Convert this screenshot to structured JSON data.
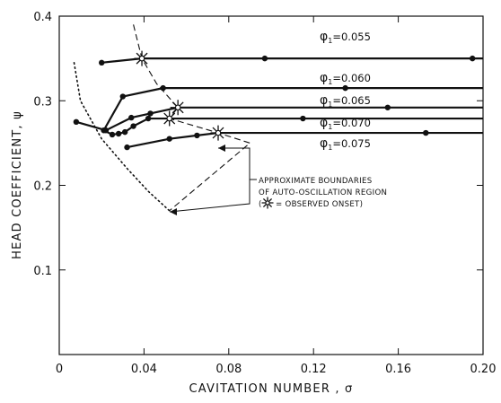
{
  "chart_data": {
    "type": "line",
    "xlabel": "CAVITATION NUMBER , σ",
    "ylabel": "HEAD COEFFICIENT, ψ",
    "xlim": [
      0,
      0.2
    ],
    "ylim": [
      0,
      0.4
    ],
    "x_ticks": [
      "0",
      "0.04",
      "0.08",
      "0.12",
      "0.16",
      "0.20"
    ],
    "y_ticks": [
      "0.1",
      "0.2",
      "0.3",
      "0.4"
    ],
    "grid": false,
    "series": [
      {
        "name": "φ1=0.055",
        "label": {
          "phi": "φ",
          "sub": "1",
          "value": "=0.055"
        },
        "x": [
          0.02,
          0.039,
          0.097,
          0.195,
          0.2
        ],
        "y": [
          0.345,
          0.35,
          0.35,
          0.35,
          0.35
        ],
        "markers": [
          0,
          2,
          3
        ]
      },
      {
        "name": "φ1=0.060",
        "label": {
          "phi": "φ",
          "sub": "1",
          "value": "=0.060"
        },
        "x": [
          0.021,
          0.03,
          0.049,
          0.135,
          0.2
        ],
        "y": [
          0.265,
          0.305,
          0.315,
          0.315,
          0.315
        ],
        "markers": [
          1,
          2,
          3
        ]
      },
      {
        "name": "φ1=0.065",
        "label": {
          "phi": "φ",
          "sub": "1",
          "value": "=0.065"
        },
        "x": [
          0.008,
          0.022,
          0.034,
          0.043,
          0.056,
          0.155,
          0.2
        ],
        "y": [
          0.275,
          0.265,
          0.28,
          0.285,
          0.292,
          0.292,
          0.292
        ],
        "markers": [
          0,
          1,
          2,
          3,
          5
        ]
      },
      {
        "name": "φ1=0.070",
        "label": {
          "phi": "φ",
          "sub": "1",
          "value": "=0.070"
        },
        "x": [
          0.021,
          0.025,
          0.028,
          0.031,
          0.035,
          0.042,
          0.052,
          0.115,
          0.2
        ],
        "y": [
          0.265,
          0.26,
          0.261,
          0.263,
          0.27,
          0.279,
          0.279,
          0.279,
          0.279
        ],
        "markers": [
          0,
          1,
          2,
          3,
          4,
          5,
          7
        ]
      },
      {
        "name": "φ1=0.075",
        "label": {
          "phi": "φ",
          "sub": "1",
          "value": "=0.075"
        },
        "x": [
          0.032,
          0.052,
          0.065,
          0.075,
          0.173,
          0.2
        ],
        "y": [
          0.245,
          0.255,
          0.259,
          0.262,
          0.262,
          0.262
        ],
        "markers": [
          0,
          1,
          2,
          4
        ]
      }
    ],
    "onset_points": [
      {
        "x": 0.039,
        "y": 0.35
      },
      {
        "x": 0.056,
        "y": 0.292
      },
      {
        "x": 0.052,
        "y": 0.279
      },
      {
        "x": 0.075,
        "y": 0.262
      }
    ],
    "boundaries": {
      "dashed": {
        "x": [
          0.035,
          0.039,
          0.046,
          0.056,
          0.052,
          0.075,
          0.09,
          0.052
        ],
        "y": [
          0.39,
          0.35,
          0.32,
          0.292,
          0.279,
          0.262,
          0.25,
          0.17
        ]
      },
      "dotted": {
        "x": [
          0.007,
          0.01,
          0.02,
          0.032,
          0.042,
          0.052
        ],
        "y": [
          0.345,
          0.3,
          0.255,
          0.22,
          0.193,
          0.17
        ]
      }
    },
    "annotation": {
      "lines": [
        "APPROXIMATE BOUNDARIES",
        "OF AUTO-OSCILLATION REGION"
      ],
      "legend_open": "(",
      "legend_text": "= OBSERVED ONSET)"
    }
  }
}
